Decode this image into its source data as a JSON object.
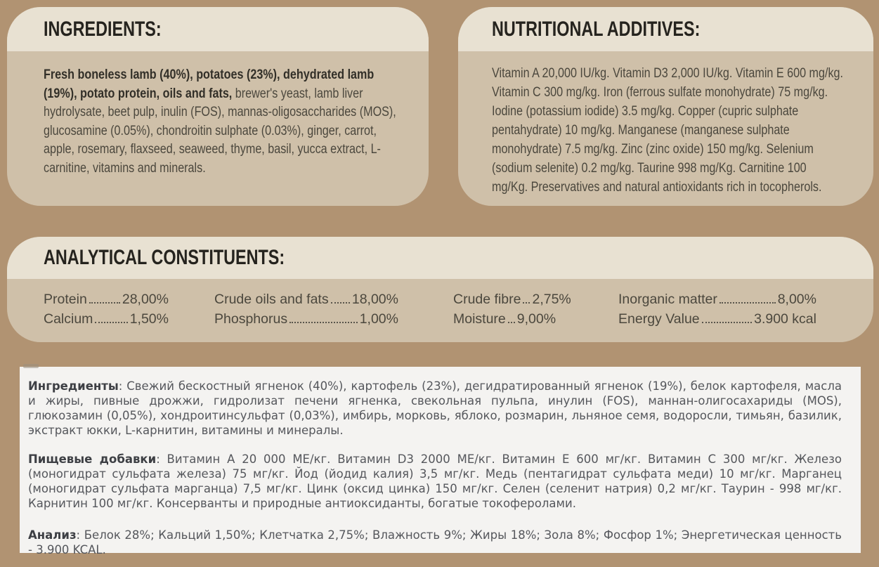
{
  "colors": {
    "bg": "#b19372",
    "band": "#e8e1d2",
    "panel": "#cfc0a9",
    "white": "#f4f3f1",
    "ink": "#25231e",
    "text": "#4b473d",
    "bold": "#322f28",
    "rutext": "#55575c",
    "rulead": "#3d3f44"
  },
  "panels": {
    "ingredients": {
      "title": "INGREDIENTS:",
      "bold": "Fresh boneless lamb (40%), potatoes (23%), dehydrated lamb (19%), potato protein, oils and fats,",
      "text": " brewer's yeast, lamb liver hydrolysate, beet pulp, inulin (FOS), mannas-oligosaccharides (MOS), glucosamine (0.05%), chondroitin sulphate (0.03%), ginger, carrot, apple, rosemary, flaxseed, seaweed, thyme, basil, yucca extract, L-carnitine, vitamins and minerals."
    },
    "additives": {
      "title": "NUTRITIONAL ADDITIVES:",
      "text": "Vitamin A 20,000 IU/kg. Vitamin D3 2,000 IU/kg. Vitamin E 600 mg/kg. Vitamin C 300 mg/kg. Iron (ferrous sulfate monohydrate) 75 mg/kg. Iodine (potassium iodide) 3.5 mg/kg. Copper (cupric sulphate pentahydrate) 10 mg/kg. Manganese (manganese sulphate monohydrate) 7.5 mg/kg. Zinc (zinc oxide) 150 mg/kg. Selenium (sodium selenite) 0.2 mg/kg. Taurine 998 mg/Kg. Carnitine 100 mg/Kg. Preservatives and natural antioxidants rich in tocopherols."
    },
    "analysis": {
      "title": "ANALYTICAL CONSTITUENTS:",
      "items": [
        {
          "label": "Protein",
          "value": "28,00%"
        },
        {
          "label": "Calcium",
          "value": "1,50%"
        },
        {
          "label": "Crude oils and fats",
          "value": "18,00%"
        },
        {
          "label": "Phosphorus",
          "value": "1,00%"
        },
        {
          "label": "Crude fibre",
          "value": "2,75%"
        },
        {
          "label": "Moisture",
          "value": "9,00%"
        },
        {
          "label": "Inorganic matter",
          "value": "8,00%"
        },
        {
          "label": "Energy Value",
          "value": "3.900 kcal"
        }
      ]
    },
    "russian": {
      "paragraphs": [
        {
          "lead": "Ингредиенты",
          "text": ": Свежий бескостный ягненок (40%), картофель (23%), дегидратированный ягненок (19%), белок картофеля, масла и жиры, пивные дрожжи, гидролизат печени ягненка, свекольная пульпа, инулин (FOS), маннан-олигосахариды (MOS), глюкозамин (0,05%), хондроитинсульфат (0,03%), имбирь, морковь, яблоко, розмарин, льняное семя, водоросли, тимьян, базилик, экстракт юкки, L-карнитин, витамины и минералы."
        },
        {
          "lead": "Пищевые добавки",
          "text": ": Витамин А 20 000 МЕ/кг. Витамин D3 2000 МЕ/кг. Витамин Е 600 мг/кг. Витамин С 300 мг/кг. Железо (моногидрат сульфата железа) 75 мг/кг. Йод (йодид калия) 3,5 мг/кг. Медь (пентагидрат сульфата меди) 10 мг/кг. Марганец (моногидрат сульфата марганца) 7,5 мг/кг. Цинк (оксид цинка) 150 мг/кг. Селен (селенит натрия) 0,2 мг/кг. Таурин - 998 мг/кг. Карнитин 100 мг/кг. Консерванты и природные антиоксиданты, богатые токоферолами."
        },
        {
          "lead": "Анализ",
          "text": ": Белок 28%; Кальций 1,50%; Клетчатка 2,75%; Влажность 9%; Жиры 18%; Зола 8%; Фосфор 1%; Энергетическая ценность - 3.900 KCAL."
        }
      ]
    }
  }
}
